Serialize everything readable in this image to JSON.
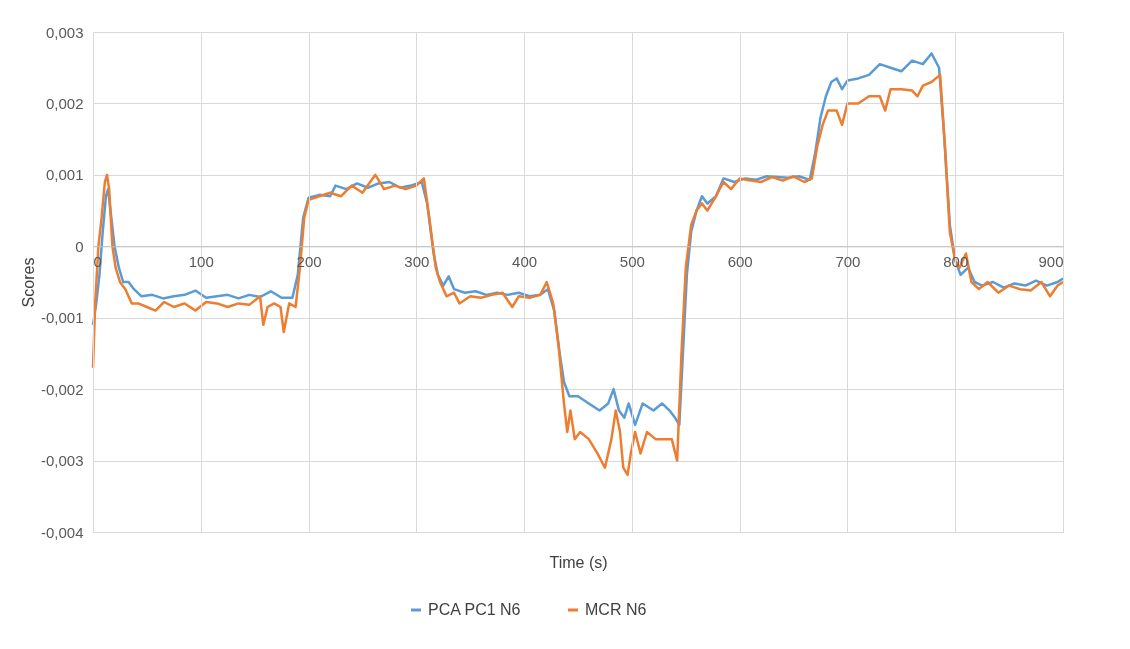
{
  "chart_data": {
    "type": "line",
    "xlabel": "Time (s)",
    "ylabel": "Scores",
    "xlim": [
      0,
      900
    ],
    "xticks": [
      0,
      100,
      200,
      300,
      400,
      500,
      600,
      700,
      800,
      900
    ],
    "ylim": [
      -0.004,
      0.003
    ],
    "yticks": [
      {
        "value": -0.004,
        "label": "-0,004"
      },
      {
        "value": -0.003,
        "label": "-0,003"
      },
      {
        "value": -0.002,
        "label": "-0,002"
      },
      {
        "value": -0.001,
        "label": "-0,001"
      },
      {
        "value": 0,
        "label": "0"
      },
      {
        "value": 0.001,
        "label": "0,001"
      },
      {
        "value": 0.002,
        "label": "0,002"
      },
      {
        "value": 0.003,
        "label": "0,003"
      }
    ],
    "grid": true,
    "legend": "bottom",
    "marker": "none",
    "line_style": "solid",
    "series": [
      {
        "name": "PCA PC1 N6",
        "color": "#5b9bd5",
        "x": [
          0,
          3,
          6,
          9,
          12,
          14,
          17,
          20,
          24,
          28,
          33,
          38,
          45,
          55,
          65,
          75,
          85,
          95,
          105,
          115,
          125,
          135,
          145,
          155,
          165,
          175,
          185,
          190,
          195,
          200,
          210,
          220,
          225,
          235,
          245,
          255,
          265,
          275,
          285,
          295,
          305,
          310,
          316,
          320,
          325,
          330,
          335,
          345,
          355,
          365,
          375,
          385,
          395,
          405,
          415,
          422,
          428,
          433,
          437,
          442,
          450,
          460,
          470,
          478,
          483,
          488,
          493,
          497,
          503,
          510,
          520,
          528,
          535,
          540,
          544,
          547,
          551,
          555,
          560,
          565,
          570,
          578,
          585,
          595,
          605,
          615,
          625,
          635,
          645,
          655,
          665,
          670,
          675,
          680,
          685,
          690,
          695,
          700,
          710,
          720,
          730,
          740,
          750,
          760,
          770,
          778,
          785,
          790,
          795,
          800,
          805,
          812,
          818,
          825,
          835,
          845,
          855,
          865,
          875,
          885,
          895,
          900
        ],
        "values": [
          -0.0011,
          -0.0008,
          -0.0004,
          0.0002,
          0.0007,
          0.0008,
          0.0004,
          0.0,
          -0.0003,
          -0.0005,
          -0.0005,
          -0.0006,
          -0.0007,
          -0.00068,
          -0.00073,
          -0.0007,
          -0.00068,
          -0.00062,
          -0.00072,
          -0.0007,
          -0.00068,
          -0.00073,
          -0.00068,
          -0.00071,
          -0.00063,
          -0.00072,
          -0.00072,
          -0.0004,
          0.0004,
          0.00068,
          0.00072,
          0.0007,
          0.00085,
          0.0008,
          0.00088,
          0.00082,
          0.00088,
          0.0009,
          0.00082,
          0.00085,
          0.0009,
          0.0006,
          -0.0001,
          -0.0004,
          -0.00055,
          -0.00042,
          -0.0006,
          -0.00065,
          -0.00063,
          -0.00068,
          -0.00065,
          -0.00068,
          -0.00065,
          -0.0007,
          -0.00068,
          -0.0006,
          -0.0009,
          -0.0015,
          -0.0019,
          -0.0021,
          -0.0021,
          -0.0022,
          -0.0023,
          -0.0022,
          -0.002,
          -0.0023,
          -0.0024,
          -0.0022,
          -0.0025,
          -0.0022,
          -0.0023,
          -0.0022,
          -0.0023,
          -0.0024,
          -0.0025,
          -0.0016,
          -0.0004,
          0.0002,
          0.0005,
          0.0007,
          0.0006,
          0.0007,
          0.00095,
          0.0009,
          0.00095,
          0.00093,
          0.00098,
          0.00097,
          0.00096,
          0.00098,
          0.00093,
          0.0013,
          0.0018,
          0.0021,
          0.0023,
          0.00235,
          0.0022,
          0.00232,
          0.00235,
          0.0024,
          0.00255,
          0.0025,
          0.00245,
          0.0026,
          0.00255,
          0.0027,
          0.0025,
          0.0015,
          0.0003,
          -0.0002,
          -0.0004,
          -0.0003,
          -0.0005,
          -0.00055,
          -0.0005,
          -0.00058,
          -0.00052,
          -0.00055,
          -0.00048,
          -0.00055,
          -0.0005,
          -0.00045
        ]
      },
      {
        "name": "MCR N6",
        "color": "#ed7d31",
        "x": [
          0,
          2,
          5,
          8,
          11,
          13,
          15,
          18,
          21,
          25,
          30,
          36,
          42,
          50,
          58,
          66,
          75,
          85,
          95,
          105,
          115,
          125,
          135,
          145,
          155,
          158,
          162,
          168,
          174,
          177,
          182,
          188,
          192,
          196,
          200,
          210,
          220,
          230,
          240,
          250,
          262,
          270,
          280,
          290,
          300,
          307,
          312,
          318,
          322,
          328,
          335,
          340,
          350,
          360,
          370,
          380,
          389,
          395,
          405,
          415,
          421,
          427,
          432,
          437,
          440,
          443,
          447,
          452,
          460,
          468,
          475,
          481,
          485,
          489,
          492,
          496,
          499,
          503,
          508,
          514,
          522,
          530,
          537,
          542,
          546,
          550,
          555,
          560,
          565,
          570,
          578,
          585,
          592,
          600,
          610,
          620,
          630,
          640,
          650,
          660,
          667,
          672,
          677,
          682,
          690,
          695,
          700,
          710,
          720,
          730,
          735,
          740,
          750,
          760,
          765,
          770,
          778,
          786,
          790,
          795,
          800,
          804,
          810,
          815,
          822,
          830,
          840,
          850,
          860,
          870,
          880,
          888,
          895,
          900
        ],
        "values": [
          -0.0017,
          -0.0008,
          0.0,
          0.0004,
          0.0009,
          0.001,
          0.0008,
          0.0,
          -0.0003,
          -0.0005,
          -0.0006,
          -0.0008,
          -0.0008,
          -0.00085,
          -0.0009,
          -0.00078,
          -0.00085,
          -0.0008,
          -0.0009,
          -0.00078,
          -0.0008,
          -0.00085,
          -0.0008,
          -0.00082,
          -0.0007,
          -0.0011,
          -0.00085,
          -0.0008,
          -0.00085,
          -0.0012,
          -0.0008,
          -0.00085,
          -0.0003,
          0.0004,
          0.00065,
          0.0007,
          0.00075,
          0.0007,
          0.00085,
          0.00075,
          0.001,
          0.0008,
          0.00085,
          0.0008,
          0.00085,
          0.00095,
          0.0004,
          -0.0003,
          -0.0005,
          -0.0007,
          -0.00065,
          -0.0008,
          -0.0007,
          -0.00072,
          -0.00068,
          -0.00065,
          -0.00085,
          -0.0007,
          -0.00072,
          -0.00068,
          -0.0005,
          -0.0008,
          -0.0014,
          -0.0022,
          -0.0026,
          -0.0023,
          -0.0027,
          -0.0026,
          -0.0027,
          -0.0029,
          -0.0031,
          -0.0027,
          -0.0023,
          -0.0026,
          -0.0031,
          -0.0032,
          -0.0029,
          -0.0026,
          -0.0029,
          -0.0026,
          -0.0027,
          -0.0027,
          -0.0027,
          -0.003,
          -0.0015,
          -0.0003,
          0.0003,
          0.0005,
          0.0006,
          0.0005,
          0.0007,
          0.0009,
          0.0008,
          0.00095,
          0.00092,
          0.0009,
          0.00097,
          0.00092,
          0.00098,
          0.0009,
          0.00095,
          0.0014,
          0.0017,
          0.0019,
          0.0019,
          0.0017,
          0.002,
          0.002,
          0.0021,
          0.0021,
          0.0019,
          0.0022,
          0.0022,
          0.00218,
          0.0021,
          0.00225,
          0.0023,
          0.0024,
          0.0015,
          0.0002,
          -0.0002,
          -0.0003,
          -0.0001,
          -0.0005,
          -0.0006,
          -0.0005,
          -0.00065,
          -0.00055,
          -0.0006,
          -0.00062,
          -0.0005,
          -0.0007,
          -0.00055,
          -0.0005
        ]
      }
    ]
  }
}
